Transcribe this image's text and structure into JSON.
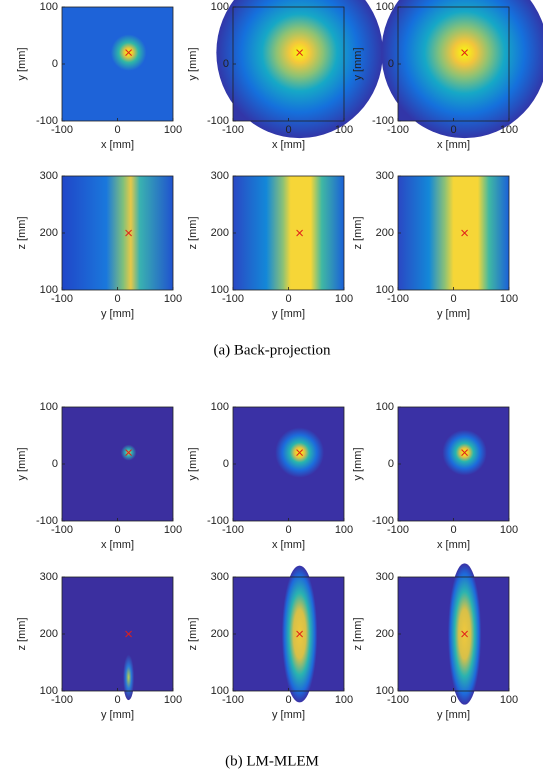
{
  "subfigures": [
    {
      "caption": "(a) Back-projection",
      "panels": [
        {
          "type": "heatmap",
          "xlabel": "x [mm]",
          "ylabel": "y [mm]",
          "xlim": [
            -100,
            100
          ],
          "ylim": [
            -100,
            100
          ],
          "xticks": [
            -100,
            0,
            100
          ],
          "yticks": [
            -100,
            0,
            100
          ],
          "marker": {
            "x": 20,
            "y": 20
          }
        },
        {
          "type": "heatmap",
          "xlabel": "x [mm]",
          "ylabel": "y [mm]",
          "xlim": [
            -100,
            100
          ],
          "ylim": [
            -100,
            100
          ],
          "xticks": [
            -100,
            0,
            100
          ],
          "yticks": [
            -100,
            0,
            100
          ],
          "marker": {
            "x": 20,
            "y": 20
          }
        },
        {
          "type": "heatmap",
          "xlabel": "x [mm]",
          "ylabel": "y [mm]",
          "xlim": [
            -100,
            100
          ],
          "ylim": [
            -100,
            100
          ],
          "xticks": [
            -100,
            0,
            100
          ],
          "yticks": [
            -100,
            0,
            100
          ],
          "marker": {
            "x": 20,
            "y": 20
          }
        },
        {
          "type": "heatmap",
          "xlabel": "y [mm]",
          "ylabel": "z [mm]",
          "xlim": [
            -100,
            100
          ],
          "ylim": [
            100,
            300
          ],
          "xticks": [
            -100,
            0,
            100
          ],
          "yticks": [
            100,
            200,
            300
          ],
          "marker": {
            "x": 20,
            "y": 200
          }
        },
        {
          "type": "heatmap",
          "xlabel": "y [mm]",
          "ylabel": "z [mm]",
          "xlim": [
            -100,
            100
          ],
          "ylim": [
            100,
            300
          ],
          "xticks": [
            -100,
            0,
            100
          ],
          "yticks": [
            100,
            200,
            300
          ],
          "marker": {
            "x": 20,
            "y": 200
          }
        },
        {
          "type": "heatmap",
          "xlabel": "y [mm]",
          "ylabel": "z [mm]",
          "xlim": [
            -100,
            100
          ],
          "ylim": [
            100,
            300
          ],
          "xticks": [
            -100,
            0,
            100
          ],
          "yticks": [
            100,
            200,
            300
          ],
          "marker": {
            "x": 20,
            "y": 200
          }
        }
      ]
    },
    {
      "caption": "(b) LM-MLEM",
      "panels": [
        {
          "type": "heatmap",
          "xlabel": "x [mm]",
          "ylabel": "y [mm]",
          "xlim": [
            -100,
            100
          ],
          "ylim": [
            -100,
            100
          ],
          "xticks": [
            -100,
            0,
            100
          ],
          "yticks": [
            -100,
            0,
            100
          ],
          "marker": {
            "x": 20,
            "y": 20
          }
        },
        {
          "type": "heatmap",
          "xlabel": "x [mm]",
          "ylabel": "y [mm]",
          "xlim": [
            -100,
            100
          ],
          "ylim": [
            -100,
            100
          ],
          "xticks": [
            -100,
            0,
            100
          ],
          "yticks": [
            -100,
            0,
            100
          ],
          "marker": {
            "x": 20,
            "y": 20
          }
        },
        {
          "type": "heatmap",
          "xlabel": "x [mm]",
          "ylabel": "y [mm]",
          "xlim": [
            -100,
            100
          ],
          "ylim": [
            -100,
            100
          ],
          "xticks": [
            -100,
            0,
            100
          ],
          "yticks": [
            -100,
            0,
            100
          ],
          "marker": {
            "x": 20,
            "y": 20
          }
        },
        {
          "type": "heatmap",
          "xlabel": "y [mm]",
          "ylabel": "z [mm]",
          "xlim": [
            -100,
            100
          ],
          "ylim": [
            100,
            300
          ],
          "xticks": [
            -100,
            0,
            100
          ],
          "yticks": [
            100,
            200,
            300
          ],
          "marker": {
            "x": 20,
            "y": 200
          }
        },
        {
          "type": "heatmap",
          "xlabel": "y [mm]",
          "ylabel": "z [mm]",
          "xlim": [
            -100,
            100
          ],
          "ylim": [
            100,
            300
          ],
          "xticks": [
            -100,
            0,
            100
          ],
          "yticks": [
            100,
            200,
            300
          ],
          "marker": {
            "x": 20,
            "y": 200
          }
        },
        {
          "type": "heatmap",
          "xlabel": "y [mm]",
          "ylabel": "z [mm]",
          "xlim": [
            -100,
            100
          ],
          "ylim": [
            100,
            300
          ],
          "xticks": [
            -100,
            0,
            100
          ],
          "yticks": [
            100,
            200,
            300
          ],
          "marker": {
            "x": 20,
            "y": 200
          }
        }
      ]
    }
  ]
}
